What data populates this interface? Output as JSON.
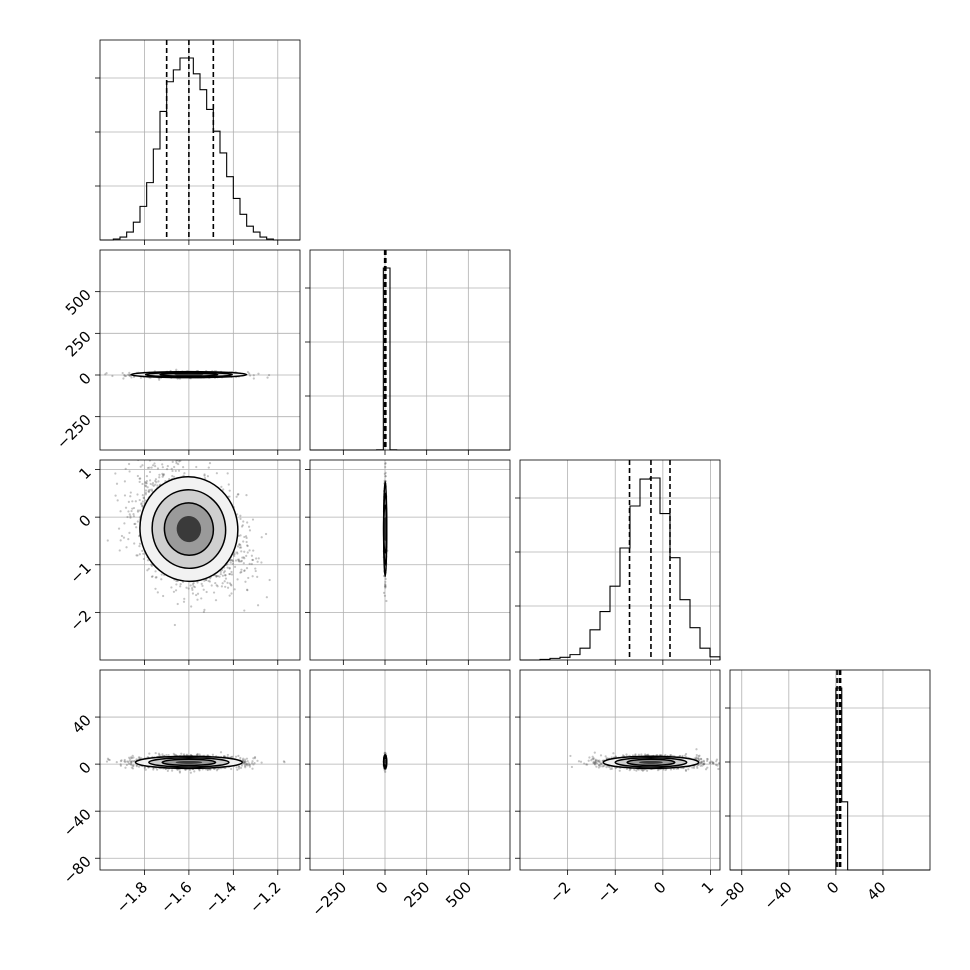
{
  "chart_data": {
    "type": "corner",
    "title": "",
    "dimensions": 4,
    "parameters": [
      {
        "label": "",
        "range": [
          -2.0,
          -1.1
        ],
        "ticks": [
          -1.8,
          -1.6,
          -1.4,
          -1.2
        ],
        "tick_labels": [
          "−1.8",
          "−1.6",
          "−1.4",
          "−1.2"
        ],
        "quantiles": [
          -1.7,
          -1.6,
          -1.49
        ],
        "histogram": {
          "edges": [
            -2.0,
            -1.97,
            -1.94,
            -1.91,
            -1.88,
            -1.85,
            -1.82,
            -1.79,
            -1.76,
            -1.73,
            -1.7,
            -1.67,
            -1.64,
            -1.61,
            -1.58,
            -1.55,
            -1.52,
            -1.49,
            -1.46,
            -1.43,
            -1.4,
            -1.37,
            -1.34,
            -1.31,
            -1.28,
            -1.25,
            -1.22,
            -1.19,
            -1.16,
            -1.13,
            -1.1
          ],
          "counts": [
            0,
            0,
            1,
            3,
            8,
            18,
            34,
            58,
            92,
            130,
            160,
            172,
            184,
            184,
            168,
            152,
            132,
            110,
            88,
            64,
            42,
            26,
            14,
            8,
            3,
            1,
            0,
            0,
            0,
            0
          ]
        }
      },
      {
        "label": "",
        "range": [
          -450,
          750
        ],
        "ticks": [
          -250,
          0,
          250,
          500
        ],
        "tick_labels": [
          "−250",
          "0",
          "250",
          "500"
        ],
        "quantiles": [
          -2,
          1,
          5
        ],
        "histogram": {
          "edges": [
            -450,
            -410,
            -370,
            -330,
            -290,
            -250,
            -210,
            -170,
            -130,
            -90,
            -50,
            -10,
            30,
            70,
            110,
            150,
            190,
            230,
            270,
            310,
            350,
            390,
            430,
            470,
            510,
            550,
            590,
            630,
            670,
            710,
            750
          ],
          "counts": [
            0,
            0,
            0,
            0,
            0,
            0,
            0,
            0,
            0,
            0,
            1,
            1000,
            1,
            0,
            0,
            0,
            0,
            0,
            0,
            0,
            0,
            0,
            0,
            0,
            0,
            0,
            0,
            0,
            0,
            0
          ]
        }
      },
      {
        "label": "",
        "range": [
          -3.0,
          1.2
        ],
        "ticks": [
          -2,
          -1,
          0,
          1
        ],
        "tick_labels": [
          "−2",
          "−1",
          "0",
          "1"
        ],
        "quantiles": [
          -0.7,
          -0.25,
          0.15
        ],
        "histogram": {
          "edges": [
            -3.0,
            -2.79,
            -2.58,
            -2.37,
            -2.16,
            -1.95,
            -1.74,
            -1.53,
            -1.32,
            -1.11,
            -0.9,
            -0.69,
            -0.48,
            -0.27,
            -0.06,
            0.15,
            0.36,
            0.57,
            0.78,
            0.99,
            1.2
          ],
          "counts": [
            0,
            0,
            1,
            3,
            5,
            10,
            22,
            56,
            90,
            137,
            208,
            286,
            336,
            338,
            272,
            190,
            112,
            60,
            22,
            6
          ]
        }
      },
      {
        "label": "",
        "range": [
          -90,
          80
        ],
        "ticks": [
          -80,
          -40,
          0,
          40
        ],
        "tick_labels": [
          "−80",
          "−40",
          "0",
          "40"
        ],
        "quantiles": [
          1,
          3,
          4
        ],
        "histogram": {
          "edges": [
            -90,
            -85,
            -80,
            -75,
            -70,
            -65,
            -60,
            -55,
            -50,
            -45,
            -40,
            -35,
            -30,
            -25,
            -20,
            -15,
            -10,
            -5,
            0,
            5,
            10,
            15,
            20,
            25,
            30,
            35,
            40,
            45,
            50,
            55,
            60,
            65,
            70,
            75,
            80
          ],
          "counts": [
            0,
            0,
            0,
            0,
            0,
            0,
            0,
            0,
            0,
            0,
            0,
            0,
            0,
            0,
            0,
            0,
            0,
            0,
            710,
            266,
            0,
            0,
            0,
            0,
            0,
            0,
            0,
            0,
            0,
            0,
            0,
            0,
            0,
            0
          ]
        }
      }
    ],
    "panels_2d": [
      {
        "row": 1,
        "col": 0,
        "center": [
          -1.6,
          2
        ],
        "spread": [
          0.13,
          9
        ],
        "rho": 0.0,
        "points": 520
      },
      {
        "row": 2,
        "col": 0,
        "center": [
          -1.6,
          -0.25
        ],
        "spread": [
          0.11,
          0.55
        ],
        "rho": -0.3,
        "points": 2600
      },
      {
        "row": 2,
        "col": 1,
        "center": [
          1,
          -0.25
        ],
        "spread": [
          3,
          0.5
        ],
        "rho": 0.0,
        "points": 420
      },
      {
        "row": 3,
        "col": 0,
        "center": [
          -1.6,
          1.5
        ],
        "spread": [
          0.12,
          2.6
        ],
        "rho": 0.0,
        "points": 1700
      },
      {
        "row": 3,
        "col": 1,
        "center": [
          1,
          2
        ],
        "spread": [
          3,
          3
        ],
        "rho": 0.0,
        "points": 180
      },
      {
        "row": 3,
        "col": 2,
        "center": [
          -0.25,
          1.5
        ],
        "spread": [
          0.5,
          2.6
        ],
        "rho": 0.0,
        "points": 1700
      }
    ],
    "contour_levels_sigma": [
      0.5,
      1.0,
      1.5,
      2.0
    ],
    "grid": true,
    "colors": {
      "axes": "#000000",
      "grid": "#b0b0b0",
      "points": "#555555"
    }
  }
}
